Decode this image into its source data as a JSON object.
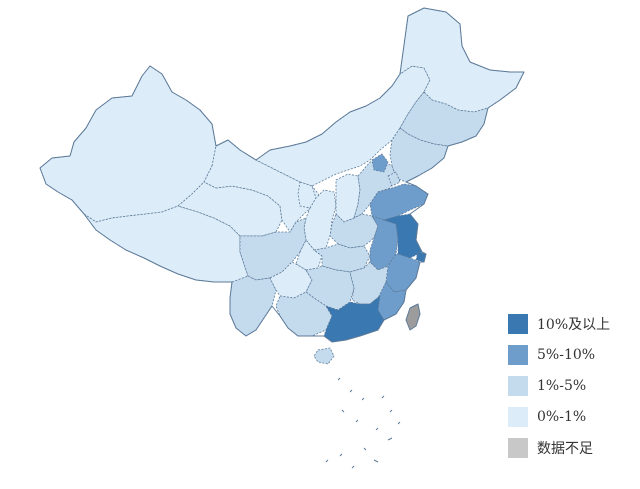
{
  "map": {
    "palette": {
      "level_4": "#3a78b2",
      "level_3": "#6e9dcb",
      "level_2": "#c4dbee",
      "level_1": "#dcedf9",
      "no_data": "#c8c8c8",
      "border": "#5d7a99",
      "taiwan_fill": "#9c9c9c"
    },
    "regions": [
      {
        "id": "xinjiang",
        "level": "level_1"
      },
      {
        "id": "tibet",
        "level": "level_1"
      },
      {
        "id": "qinghai",
        "level": "level_1"
      },
      {
        "id": "gansu",
        "level": "level_1"
      },
      {
        "id": "inner-mongolia",
        "level": "level_1"
      },
      {
        "id": "heilongjiang",
        "level": "level_1"
      },
      {
        "id": "jilin",
        "level": "level_2"
      },
      {
        "id": "liaoning",
        "level": "level_2"
      },
      {
        "id": "ningxia",
        "level": "level_1"
      },
      {
        "id": "shaanxi",
        "level": "level_1"
      },
      {
        "id": "shanxi",
        "level": "level_1"
      },
      {
        "id": "hebei",
        "level": "level_2"
      },
      {
        "id": "beijing",
        "level": "level_3"
      },
      {
        "id": "tianjin",
        "level": "level_2"
      },
      {
        "id": "shandong",
        "level": "level_3"
      },
      {
        "id": "henan",
        "level": "level_2"
      },
      {
        "id": "sichuan",
        "level": "level_2"
      },
      {
        "id": "chongqing",
        "level": "level_1"
      },
      {
        "id": "hubei",
        "level": "level_2"
      },
      {
        "id": "anhui",
        "level": "level_3"
      },
      {
        "id": "jiangsu",
        "level": "level_4"
      },
      {
        "id": "shanghai",
        "level": "level_4"
      },
      {
        "id": "zhejiang",
        "level": "level_3"
      },
      {
        "id": "yunnan",
        "level": "level_2"
      },
      {
        "id": "guizhou",
        "level": "level_1"
      },
      {
        "id": "hunan",
        "level": "level_2"
      },
      {
        "id": "jiangxi",
        "level": "level_2"
      },
      {
        "id": "fujian",
        "level": "level_3"
      },
      {
        "id": "guangxi",
        "level": "level_2"
      },
      {
        "id": "guangdong",
        "level": "level_4"
      },
      {
        "id": "hainan",
        "level": "level_2"
      },
      {
        "id": "taiwan",
        "level": "no_data"
      }
    ]
  },
  "legend": {
    "items": [
      {
        "label": "10%及以上",
        "color": "#3a78b2"
      },
      {
        "label": "5%-10%",
        "color": "#6e9dcb"
      },
      {
        "label": "1%-5%",
        "color": "#c4dbee"
      },
      {
        "label": "0%-1%",
        "color": "#dcedf9"
      },
      {
        "label": "数据不足",
        "color": "#c8c8c8"
      }
    ]
  }
}
